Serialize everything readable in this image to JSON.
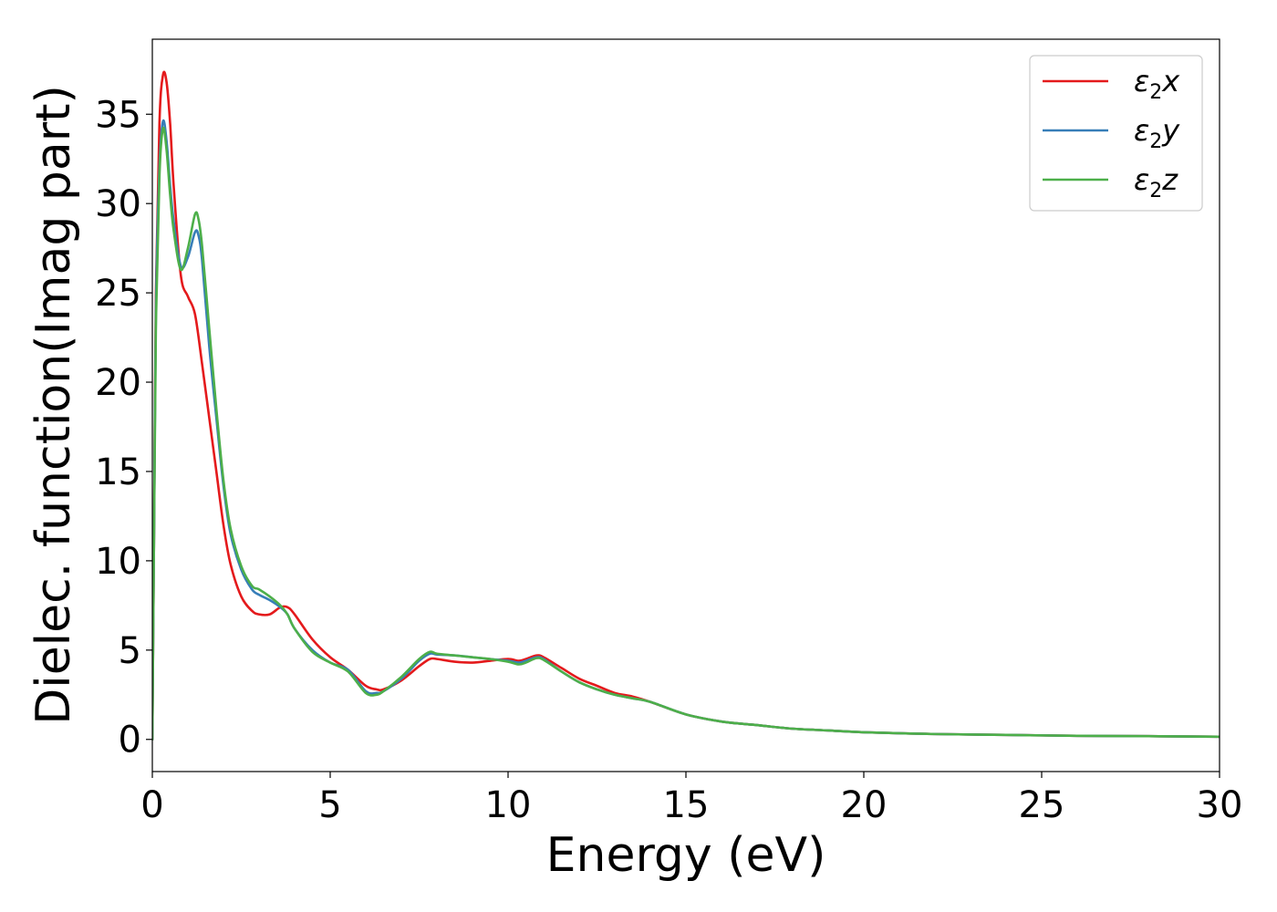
{
  "chart_data": {
    "type": "line",
    "title": "",
    "xlabel": "Energy (eV)",
    "ylabel": "Dielec. function(Imag part)",
    "xlim": [
      0,
      30
    ],
    "ylim": [
      -1.8,
      39.2
    ],
    "xticks": [
      0,
      5,
      10,
      15,
      20,
      25,
      30
    ],
    "yticks": [
      0,
      5,
      10,
      15,
      20,
      25,
      30,
      35
    ],
    "grid": false,
    "legend_position": "top-right",
    "series": [
      {
        "name": "ε2x",
        "legend": {
          "base": "ε",
          "sub": "2",
          "suffix": "x"
        },
        "color": "#e41a1c",
        "x": [
          0,
          0.05,
          0.1,
          0.2,
          0.3,
          0.4,
          0.5,
          0.6,
          0.8,
          1.0,
          1.2,
          1.4,
          1.6,
          1.8,
          2.0,
          2.2,
          2.5,
          2.8,
          3.0,
          3.3,
          3.6,
          3.8,
          4.0,
          4.5,
          5.0,
          5.5,
          6.0,
          6.3,
          6.5,
          7.0,
          7.5,
          7.8,
          8.0,
          8.5,
          9.0,
          9.5,
          10.0,
          10.3,
          10.5,
          10.8,
          11.0,
          11.5,
          12.0,
          12.5,
          13.0,
          13.5,
          14.0,
          15.0,
          16.0,
          17.0,
          18.0,
          19.0,
          20.0,
          22.0,
          24.0,
          26.0,
          28.0,
          30.0
        ],
        "y": [
          0,
          12,
          25,
          34.5,
          37.2,
          36.8,
          34.5,
          31,
          26,
          24.8,
          23.8,
          21,
          18,
          15,
          12,
          9.8,
          8,
          7.2,
          7.0,
          7.0,
          7.4,
          7.4,
          7.0,
          5.6,
          4.6,
          3.9,
          3.0,
          2.8,
          2.8,
          3.3,
          4.1,
          4.5,
          4.5,
          4.35,
          4.3,
          4.4,
          4.5,
          4.4,
          4.5,
          4.7,
          4.6,
          4.0,
          3.4,
          3.0,
          2.6,
          2.4,
          2.1,
          1.4,
          1.0,
          0.8,
          0.6,
          0.5,
          0.4,
          0.3,
          0.25,
          0.2,
          0.18,
          0.15
        ]
      },
      {
        "name": "ε2y",
        "legend": {
          "base": "ε",
          "sub": "2",
          "suffix": "y"
        },
        "color": "#377eb8",
        "x": [
          0,
          0.05,
          0.1,
          0.2,
          0.3,
          0.4,
          0.5,
          0.6,
          0.8,
          1.0,
          1.2,
          1.3,
          1.4,
          1.6,
          1.8,
          2.0,
          2.2,
          2.5,
          2.8,
          3.0,
          3.3,
          3.6,
          3.8,
          4.0,
          4.5,
          5.0,
          5.5,
          6.0,
          6.3,
          6.5,
          7.0,
          7.5,
          7.8,
          8.0,
          8.5,
          9.0,
          9.5,
          10.0,
          10.3,
          10.5,
          10.8,
          11.0,
          11.5,
          12.0,
          12.5,
          13.0,
          13.5,
          14.0,
          15.0,
          16.0,
          17.0,
          18.0,
          19.0,
          20.0,
          22.0,
          24.0,
          26.0,
          28.0,
          30.0
        ],
        "y": [
          0,
          12,
          24,
          32,
          34.6,
          33.5,
          31,
          29,
          26.5,
          27,
          28.4,
          28.2,
          26.8,
          22,
          18,
          14.2,
          11.5,
          9.5,
          8.4,
          8.1,
          7.8,
          7.4,
          7.0,
          6.2,
          5.0,
          4.3,
          3.9,
          2.7,
          2.6,
          2.7,
          3.4,
          4.4,
          4.8,
          4.75,
          4.7,
          4.6,
          4.5,
          4.4,
          4.3,
          4.4,
          4.6,
          4.5,
          3.8,
          3.2,
          2.8,
          2.5,
          2.3,
          2.1,
          1.4,
          1.0,
          0.8,
          0.6,
          0.5,
          0.4,
          0.3,
          0.25,
          0.2,
          0.18,
          0.15
        ]
      },
      {
        "name": "ε2z",
        "legend": {
          "base": "ε",
          "sub": "2",
          "suffix": "z"
        },
        "color": "#4daf4a",
        "x": [
          0,
          0.05,
          0.1,
          0.2,
          0.3,
          0.4,
          0.5,
          0.6,
          0.8,
          1.0,
          1.2,
          1.3,
          1.4,
          1.6,
          1.8,
          2.0,
          2.2,
          2.5,
          2.8,
          3.0,
          3.3,
          3.6,
          3.8,
          4.0,
          4.5,
          5.0,
          5.5,
          6.0,
          6.3,
          6.5,
          7.0,
          7.5,
          7.8,
          8.0,
          8.5,
          9.0,
          9.5,
          10.0,
          10.3,
          10.5,
          10.8,
          11.0,
          11.5,
          12.0,
          12.5,
          13.0,
          13.5,
          14.0,
          15.0,
          16.0,
          17.0,
          18.0,
          19.0,
          20.0,
          22.0,
          24.0,
          26.0,
          28.0,
          30.0
        ],
        "y": [
          0,
          12,
          23,
          31.5,
          34.2,
          33.0,
          30.5,
          28.5,
          26.3,
          27.5,
          29.4,
          29.1,
          27.6,
          23,
          18.5,
          14.5,
          11.8,
          9.7,
          8.6,
          8.4,
          8.0,
          7.5,
          7.0,
          6.2,
          4.9,
          4.3,
          3.8,
          2.6,
          2.5,
          2.7,
          3.5,
          4.5,
          4.9,
          4.8,
          4.7,
          4.6,
          4.5,
          4.35,
          4.2,
          4.3,
          4.55,
          4.45,
          3.8,
          3.2,
          2.8,
          2.5,
          2.3,
          2.1,
          1.4,
          1.0,
          0.8,
          0.6,
          0.5,
          0.4,
          0.3,
          0.25,
          0.2,
          0.18,
          0.15
        ]
      }
    ]
  }
}
